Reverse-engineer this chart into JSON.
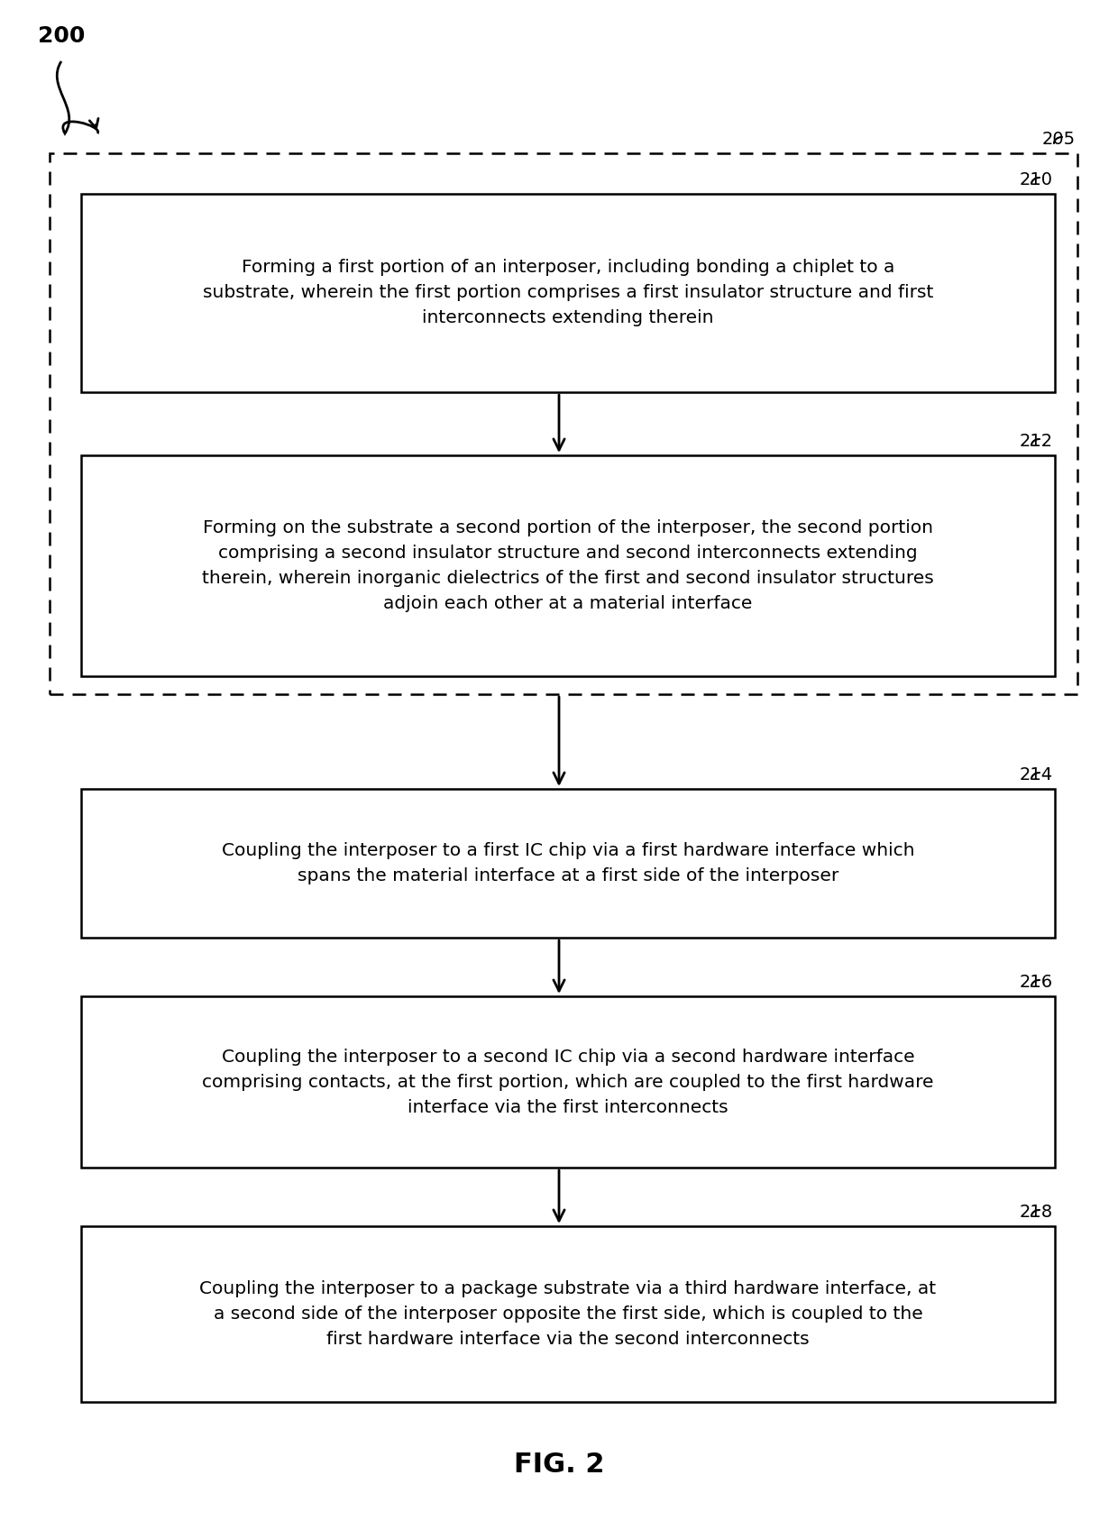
{
  "figure_label": "200",
  "figure_caption": "FIG. 2",
  "background_color": "#ffffff",
  "dashed_box_label": "205",
  "boxes": [
    {
      "id": "210",
      "label": "210",
      "text": "Forming a first portion of an interposer, including bonding a chiplet to a\nsubstrate, wherein the first portion comprises a first insulator structure and first\ninterconnects extending therein",
      "fontsize": 14.5
    },
    {
      "id": "212",
      "label": "212",
      "text": "Forming on the substrate a second portion of the interposer, the second portion\ncomprising a second insulator structure and second interconnects extending\ntherein, wherein inorganic dielectrics of the first and second insulator structures\nadjoin each other at a material interface",
      "fontsize": 14.5
    },
    {
      "id": "214",
      "label": "214",
      "text": "Coupling the interposer to a first IC chip via a first hardware interface which\nspans the material interface at a first side of the interposer",
      "fontsize": 14.5
    },
    {
      "id": "216",
      "label": "216",
      "text": "Coupling the interposer to a second IC chip via a second hardware interface\ncomprising contacts, at the first portion, which are coupled to the first hardware\ninterface via the first interconnects",
      "fontsize": 14.5
    },
    {
      "id": "218",
      "label": "218",
      "text": "Coupling the interposer to a package substrate via a third hardware interface, at\na second side of the interposer opposite the first side, which is coupled to the\nfirst hardware interface via the second interconnects",
      "fontsize": 14.5
    }
  ]
}
